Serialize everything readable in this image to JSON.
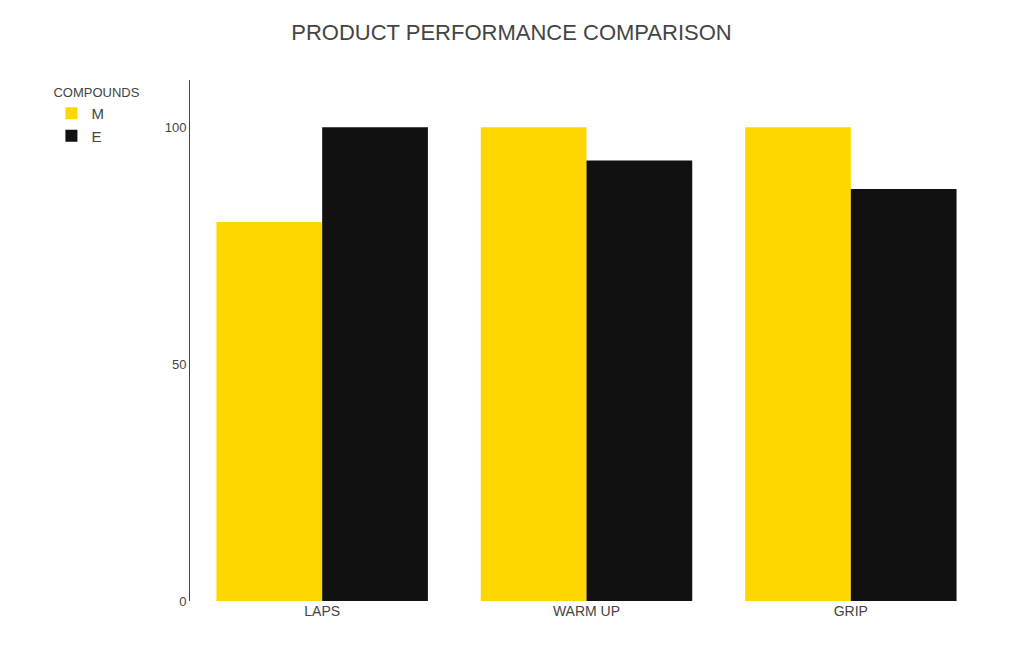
{
  "chart_data": {
    "type": "bar",
    "title": "PRODUCT PERFORMANCE COMPARISON",
    "categories": [
      "LAPS",
      "WARM UP",
      "GRIP"
    ],
    "series": [
      {
        "name": "M",
        "color": "#FFD700",
        "values": [
          80,
          100,
          100
        ]
      },
      {
        "name": "E",
        "color": "#111111",
        "values": [
          100,
          93,
          87
        ]
      }
    ],
    "legend_title": "COMPOUNDS",
    "legend": "left",
    "ylim": [
      0,
      110
    ],
    "yticks": [
      0,
      50,
      100
    ],
    "grid": false
  }
}
